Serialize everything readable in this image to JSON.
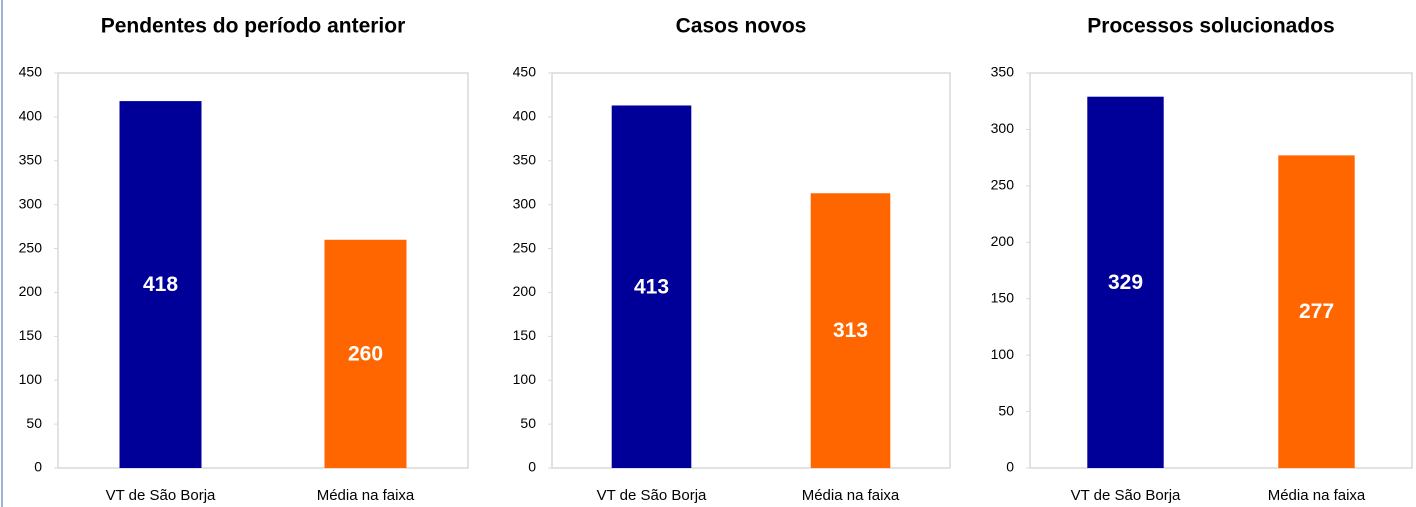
{
  "chart_data": [
    {
      "type": "bar",
      "title": "Pendentes do período anterior",
      "categories": [
        "VT de São Borja",
        "Média na faixa"
      ],
      "values": [
        418,
        260
      ],
      "colors": [
        "#000099",
        "#ff6600"
      ],
      "ylim": [
        0,
        450
      ],
      "yticks": [
        0,
        50,
        100,
        150,
        200,
        250,
        300,
        350,
        400,
        450
      ]
    },
    {
      "type": "bar",
      "title": "Casos novos",
      "categories": [
        "VT de São Borja",
        "Média na faixa"
      ],
      "values": [
        413,
        313
      ],
      "colors": [
        "#000099",
        "#ff6600"
      ],
      "ylim": [
        0,
        450
      ],
      "yticks": [
        0,
        50,
        100,
        150,
        200,
        250,
        300,
        350,
        400,
        450
      ]
    },
    {
      "type": "bar",
      "title": "Processos solucionados",
      "categories": [
        "VT de São Borja",
        "Média na faixa"
      ],
      "values": [
        329,
        277
      ],
      "colors": [
        "#000099",
        "#ff6600"
      ],
      "ylim": [
        0,
        350
      ],
      "yticks": [
        0,
        50,
        100,
        150,
        200,
        250,
        300,
        350
      ]
    }
  ]
}
